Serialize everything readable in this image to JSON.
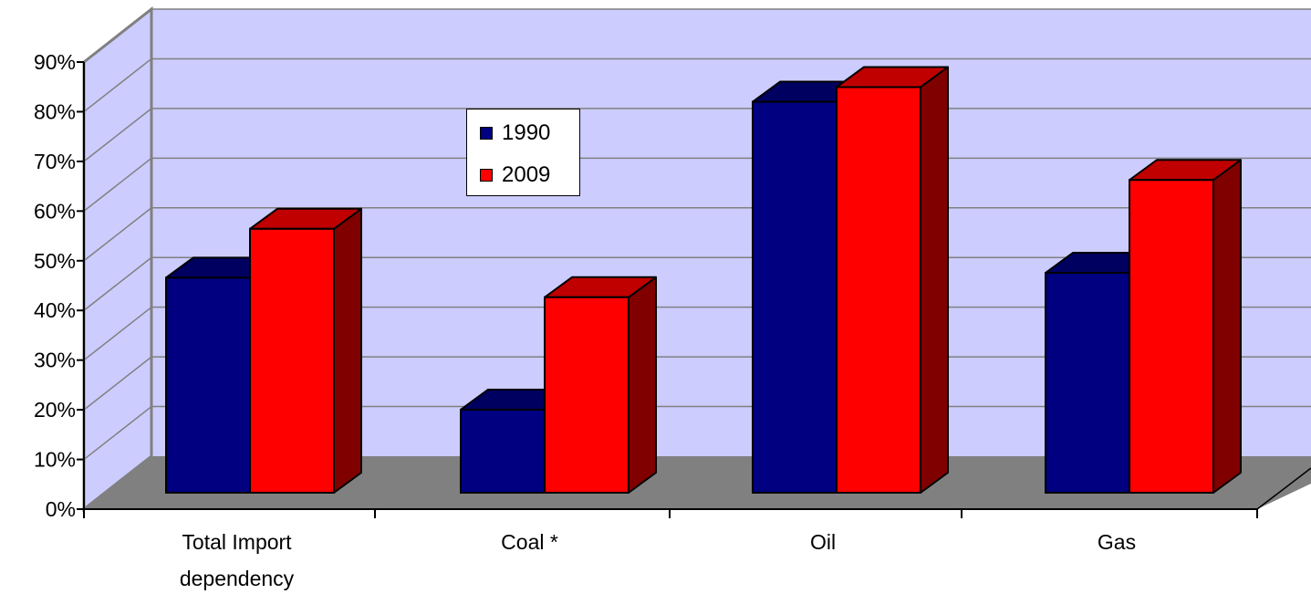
{
  "chart_data": {
    "type": "bar",
    "categories": [
      "Total Import dependency",
      "Coal *",
      "Oil",
      "Gas"
    ],
    "category_lines": [
      [
        "Total Import",
        "dependency"
      ],
      [
        "Coal *"
      ],
      [
        "Oil"
      ],
      [
        "Gas"
      ]
    ],
    "series": [
      {
        "name": "1990",
        "values": [
          44,
          17,
          80,
          45
        ],
        "color": "#000080"
      },
      {
        "name": "2009",
        "values": [
          54,
          40,
          83,
          64
        ],
        "color": "#ff0000"
      }
    ],
    "ylim": [
      0,
      90
    ],
    "yticks": [
      "0%",
      "10%",
      "20%",
      "30%",
      "40%",
      "50%",
      "60%",
      "70%",
      "80%",
      "90%"
    ],
    "grid": true,
    "legend_position": "inside-upper-left",
    "colors": {
      "wall": "#ccccff",
      "floor": "#808080",
      "side_1990": "#000040",
      "side_2009": "#800000",
      "top_1990": "#000060",
      "top_2009": "#c00000"
    }
  }
}
